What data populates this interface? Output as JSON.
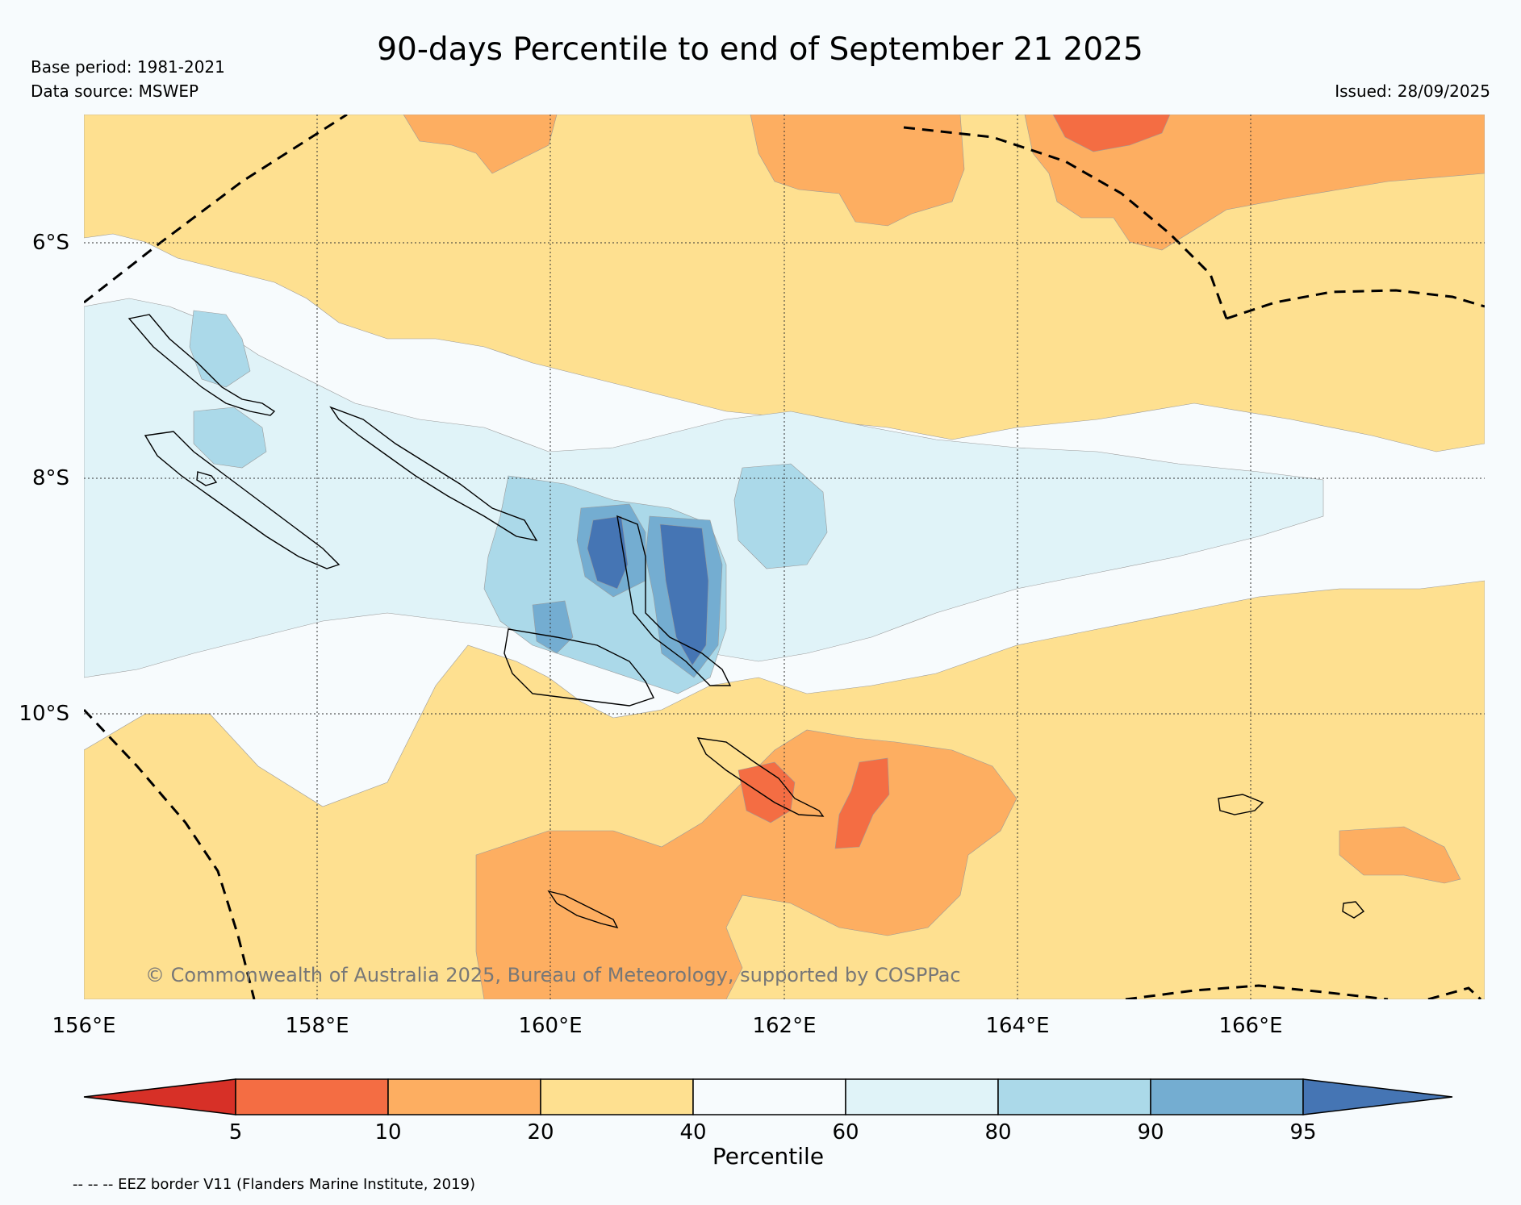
{
  "header": {
    "title": "90-days Percentile to end of September 21 2025",
    "base_period": "Base period: 1981-2021",
    "data_source": "Data source: MSWEP",
    "issued": "Issued: 28/09/2025"
  },
  "map": {
    "lat_labels": [
      "6°S",
      "8°S",
      "10°S"
    ],
    "lon_labels": [
      "156°E",
      "158°E",
      "160°E",
      "162°E",
      "164°E",
      "166°E"
    ],
    "copyright": "© Commonwealth of Australia 2025, Bureau of Meteorology, supported by COSPPac"
  },
  "colorbar": {
    "label": "Percentile",
    "ticks": [
      "5",
      "10",
      "20",
      "40",
      "60",
      "80",
      "90",
      "95"
    ],
    "colors": {
      "lt5": "#d73027",
      "p5_10": "#f46d43",
      "p10_20": "#fdae61",
      "p20_40": "#fee090",
      "p40_60": "#f7fbfd",
      "p60_80": "#e0f3f8",
      "p80_90": "#abd9e9",
      "p90_95": "#74add1",
      "gt95": "#4575b4"
    }
  },
  "footer": {
    "eez_note": "-- -- -- EEZ border V11 (Flanders Marine Institute, 2019)"
  }
}
